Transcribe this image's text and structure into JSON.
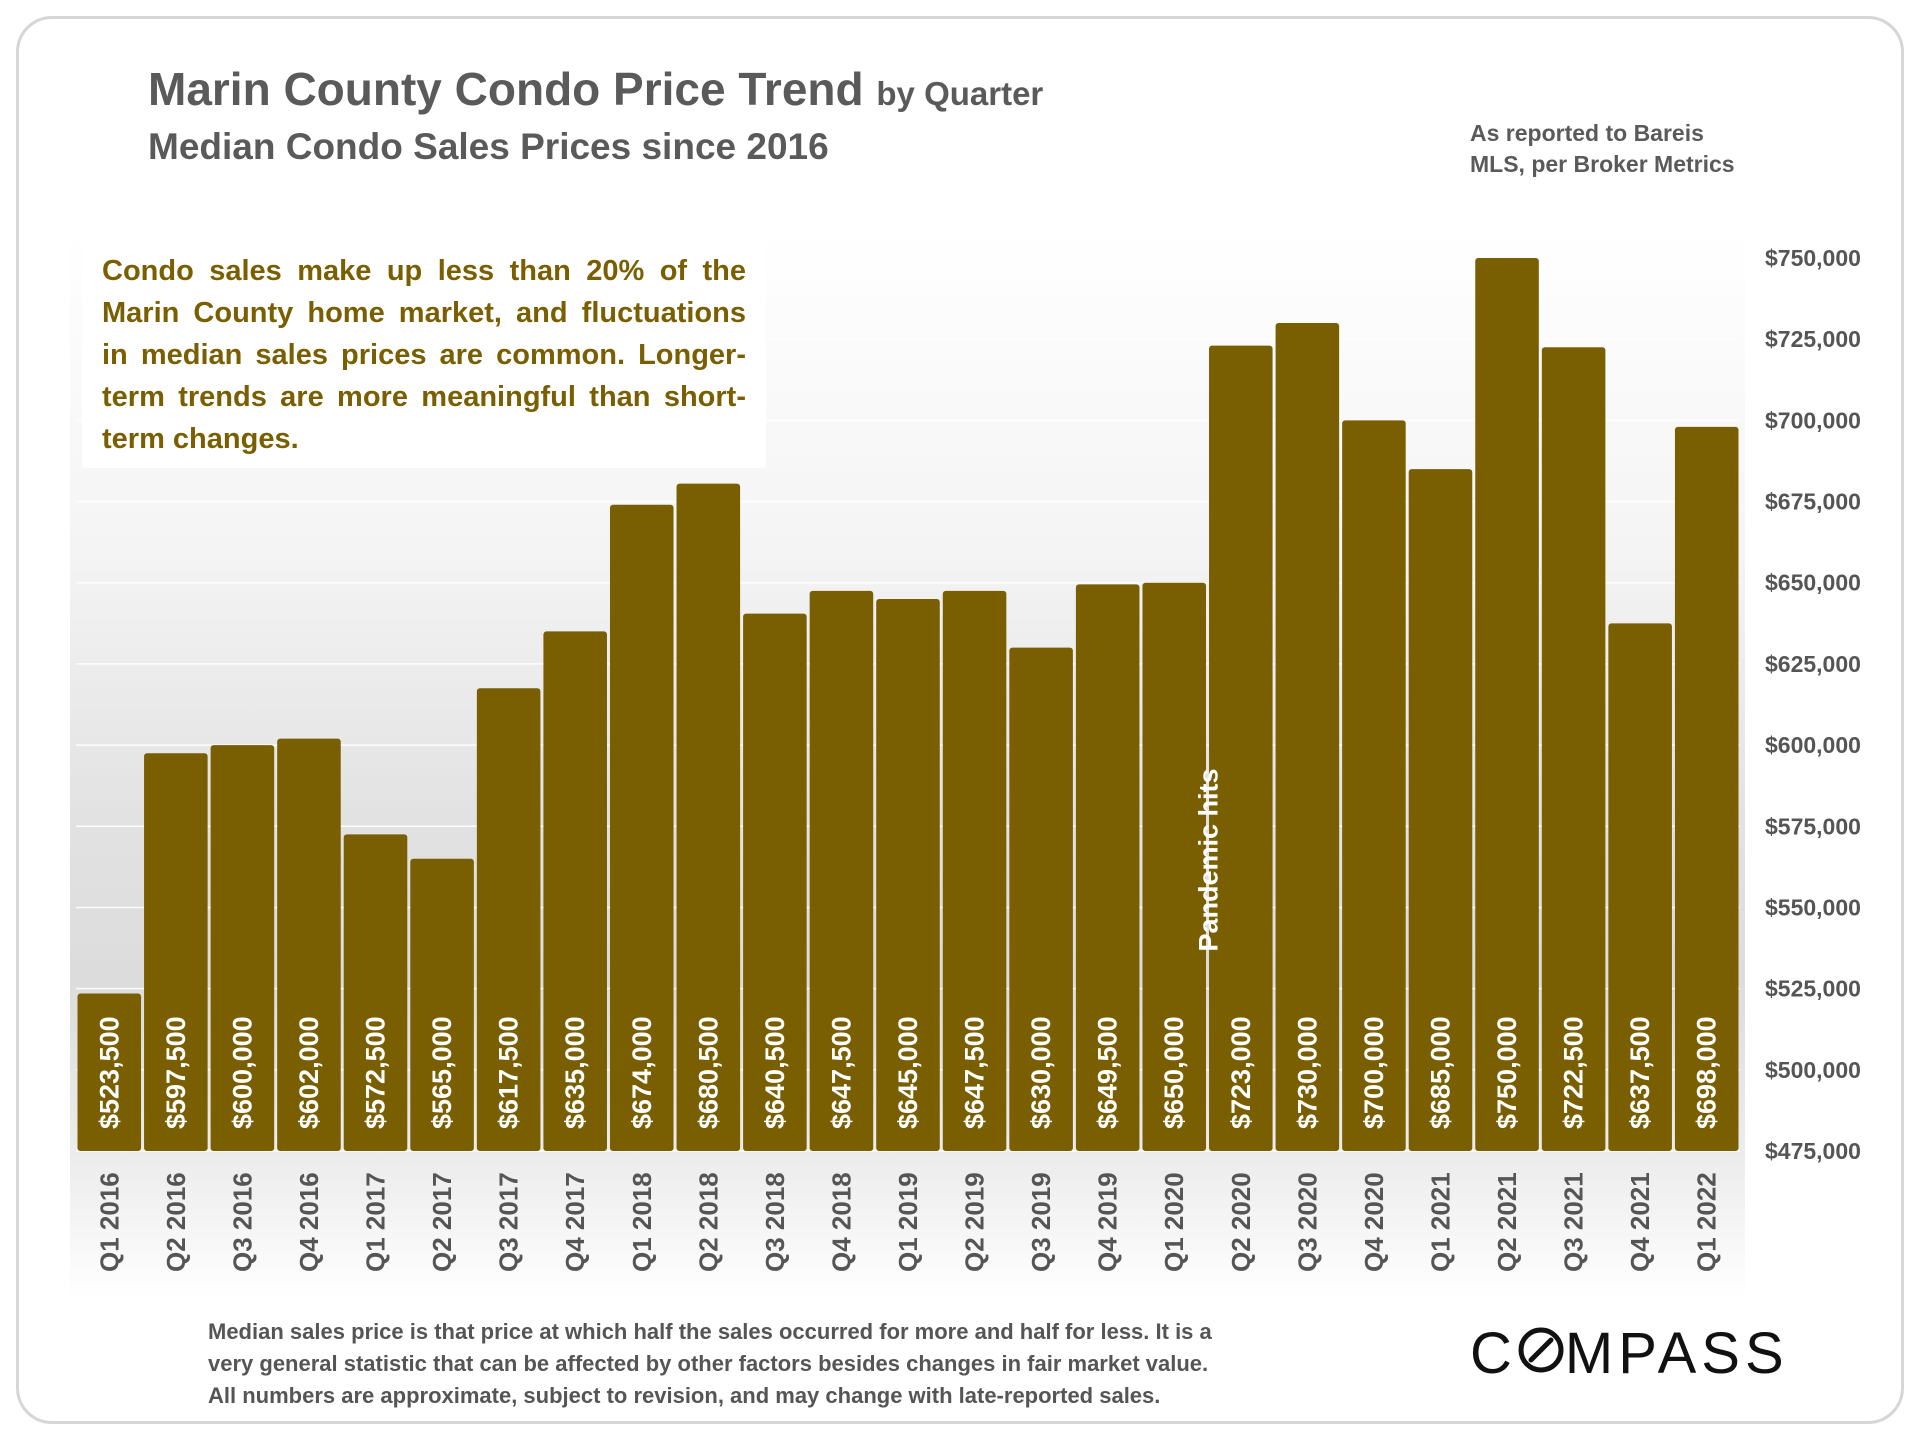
{
  "header": {
    "title_main": "Marin County Condo Price Trend",
    "title_suffix": "by Quarter",
    "subtitle": "Median Condo Sales Prices since 2016",
    "source_line1": "As reported to Bareis",
    "source_line2": "MLS, per Broker Metrics"
  },
  "callout": {
    "text": "Condo sales make up less than 20% of the Marin County home market, and fluctuations in median sales prices are common. Longer-term trends are more meaningful than short-term changes."
  },
  "footnote": {
    "line1": "Median sales price is that price at which half the sales occurred for more and half for less. It is a",
    "line2": "very general statistic that can be affected by other factors besides changes in fair market value.",
    "line3": "All numbers are approximate, subject to revision, and may change with late-reported sales."
  },
  "logo": {
    "pre": "C",
    "post": "MPASS",
    "full": "COMPASS"
  },
  "colors": {
    "bar": "#7a5f02",
    "bar_label": "#ffffff",
    "axis_text": "#555555",
    "callout_text": "#7a5f02"
  },
  "chart_data": {
    "type": "bar",
    "title": "Marin County Condo Price Trend by Quarter",
    "subtitle": "Median Condo Sales Prices since 2016",
    "xlabel": "",
    "ylabel": "",
    "ylim": [
      475000,
      750000
    ],
    "ytick_step": 25000,
    "y_axis_side": "right",
    "grid": true,
    "categories": [
      "Q1 2016",
      "Q2 2016",
      "Q3 2016",
      "Q4 2016",
      "Q1 2017",
      "Q2 2017",
      "Q3 2017",
      "Q4 2017",
      "Q1 2018",
      "Q2 2018",
      "Q3 2018",
      "Q4 2018",
      "Q1 2019",
      "Q2 2019",
      "Q3 2019",
      "Q4 2019",
      "Q1 2020",
      "Q2 2020",
      "Q3 2020",
      "Q4 2020",
      "Q1 2021",
      "Q2 2021",
      "Q3 2021",
      "Q4 2021",
      "Q1 2022"
    ],
    "values": [
      523500,
      597500,
      600000,
      602000,
      572500,
      565000,
      617500,
      635000,
      674000,
      680500,
      640500,
      647500,
      645000,
      647500,
      630000,
      649500,
      650000,
      723000,
      730000,
      700000,
      685000,
      750000,
      722500,
      637500,
      698000
    ],
    "value_labels": [
      "$523,500",
      "$597,500",
      "$600,000",
      "$602,000",
      "$572,500",
      "$565,000",
      "$617,500",
      "$635,000",
      "$674,000",
      "$680,500",
      "$640,500",
      "$647,500",
      "$645,000",
      "$647,500",
      "$630,000",
      "$649,500",
      "$650,000",
      "$723,000",
      "$730,000",
      "$700,000",
      "$685,000",
      "$750,000",
      "$722,500",
      "$637,500",
      "$698,000"
    ],
    "ytick_labels": [
      "$475,000",
      "$500,000",
      "$525,000",
      "$550,000",
      "$575,000",
      "$600,000",
      "$625,000",
      "$650,000",
      "$675,000",
      "$700,000",
      "$725,000",
      "$750,000"
    ],
    "annotations": [
      {
        "text": "Pandemic hits",
        "after_category": "Q1 2020"
      }
    ]
  }
}
